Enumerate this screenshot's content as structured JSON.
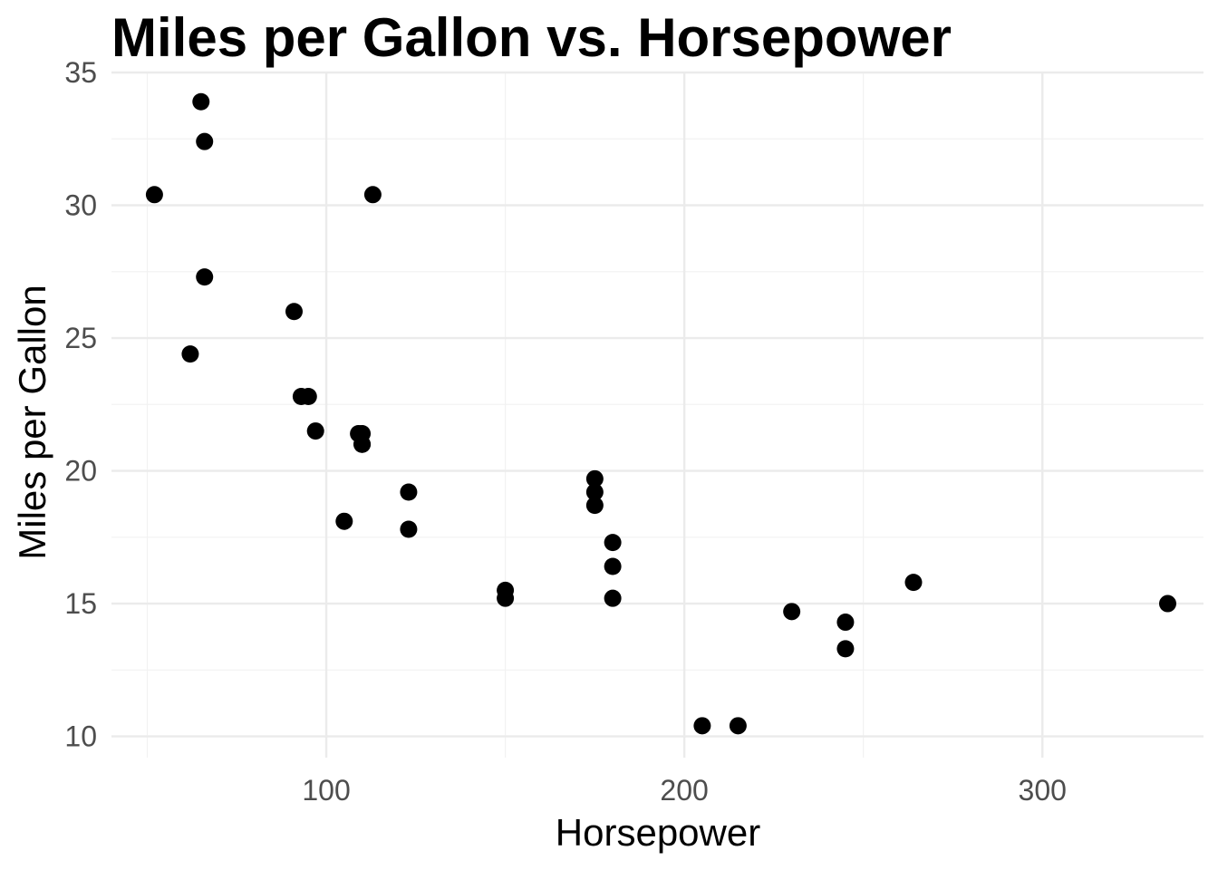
{
  "chart_data": {
    "type": "scatter",
    "title": "Miles per Gallon vs. Horsepower",
    "xlabel": "Horsepower",
    "ylabel": "Miles per Gallon",
    "xlim": [
      40,
      345
    ],
    "ylim": [
      9.2,
      35
    ],
    "x_ticks": [
      100,
      200,
      300
    ],
    "x_tick_labels": [
      "100",
      "200",
      "300"
    ],
    "x_minor_ticks": [
      50,
      150,
      250,
      350
    ],
    "y_ticks": [
      10,
      15,
      20,
      25,
      30,
      35
    ],
    "y_tick_labels": [
      "10",
      "15",
      "20",
      "25",
      "30",
      "35"
    ],
    "y_minor_ticks": [
      12.5,
      17.5,
      22.5,
      27.5,
      32.5
    ],
    "grid": true,
    "point_color": "#000000",
    "points": [
      {
        "x": 110,
        "y": 21.0
      },
      {
        "x": 110,
        "y": 21.0
      },
      {
        "x": 93,
        "y": 22.8
      },
      {
        "x": 110,
        "y": 21.4
      },
      {
        "x": 175,
        "y": 18.7
      },
      {
        "x": 105,
        "y": 18.1
      },
      {
        "x": 245,
        "y": 14.3
      },
      {
        "x": 62,
        "y": 24.4
      },
      {
        "x": 95,
        "y": 22.8
      },
      {
        "x": 123,
        "y": 19.2
      },
      {
        "x": 123,
        "y": 17.8
      },
      {
        "x": 180,
        "y": 16.4
      },
      {
        "x": 180,
        "y": 17.3
      },
      {
        "x": 180,
        "y": 15.2
      },
      {
        "x": 205,
        "y": 10.4
      },
      {
        "x": 215,
        "y": 10.4
      },
      {
        "x": 230,
        "y": 14.7
      },
      {
        "x": 66,
        "y": 32.4
      },
      {
        "x": 52,
        "y": 30.4
      },
      {
        "x": 65,
        "y": 33.9
      },
      {
        "x": 97,
        "y": 21.5
      },
      {
        "x": 150,
        "y": 15.5
      },
      {
        "x": 150,
        "y": 15.2
      },
      {
        "x": 245,
        "y": 13.3
      },
      {
        "x": 175,
        "y": 19.2
      },
      {
        "x": 66,
        "y": 27.3
      },
      {
        "x": 91,
        "y": 26.0
      },
      {
        "x": 113,
        "y": 30.4
      },
      {
        "x": 264,
        "y": 15.8
      },
      {
        "x": 175,
        "y": 19.7
      },
      {
        "x": 335,
        "y": 15.0
      },
      {
        "x": 109,
        "y": 21.4
      }
    ]
  }
}
